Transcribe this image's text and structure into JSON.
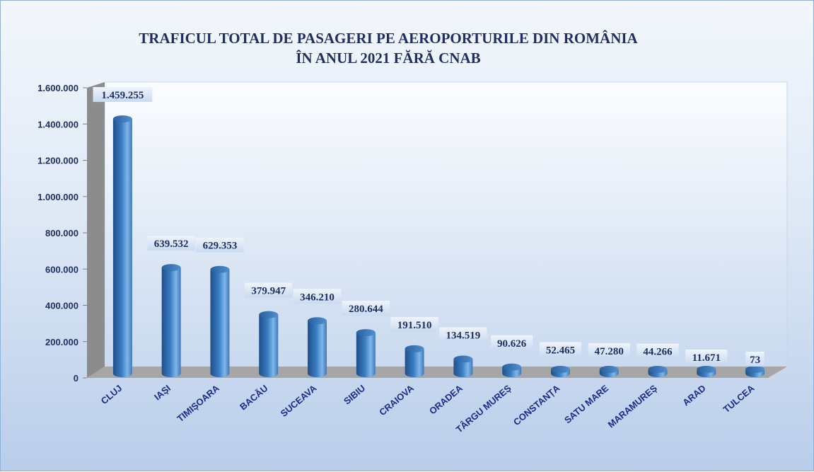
{
  "chart_data": {
    "type": "bar",
    "title": "TRAFICUL TOTAL DE PASAGERI PE AEROPORTURILE DIN ROMÂNIA",
    "subtitle": "ÎN ANUL 2021 FĂRĂ CNAB",
    "categories": [
      "CLUJ",
      "IAȘI",
      "TIMIȘOARA",
      "BACĂU",
      "SUCEAVA",
      "SIBIU",
      "CRAIOVA",
      "ORADEA",
      "TÂRGU MUREȘ",
      "CONSTANȚA",
      "SATU MARE",
      "MARAMUREȘ",
      "ARAD",
      "TULCEA"
    ],
    "values": [
      1459255,
      639532,
      629353,
      379947,
      346210,
      280644,
      191510,
      134519,
      90626,
      52465,
      47280,
      44266,
      11671,
      73
    ],
    "value_labels": [
      "1.459.255",
      "639.532",
      "629.353",
      "379.947",
      "346.210",
      "280.644",
      "191.510",
      "134.519",
      "90.626",
      "52.465",
      "47.280",
      "44.266",
      "11.671",
      "73"
    ],
    "ylim": [
      0,
      1600000
    ],
    "yticks": [
      0,
      200000,
      400000,
      600000,
      800000,
      1000000,
      1200000,
      1400000,
      1600000
    ],
    "ytick_labels": [
      "0",
      "200.000",
      "400.000",
      "600.000",
      "800.000",
      "1.000.000",
      "1.200.000",
      "1.400.000",
      "1.600.000"
    ],
    "xlabel": "",
    "ylabel": "",
    "grid": false,
    "legend": "none",
    "colors": {
      "bar": "#3d7fc4",
      "text": "#1f2f63",
      "category_text": "#1e2a8c",
      "floor": "#a6a6a6",
      "wall": "#8c8c8c"
    }
  }
}
